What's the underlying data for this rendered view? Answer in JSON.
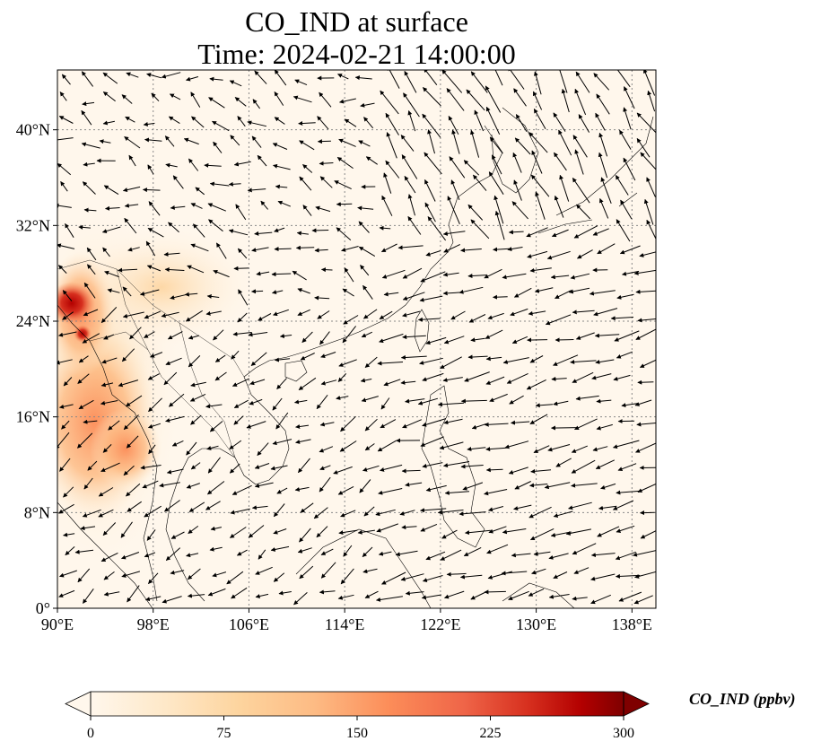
{
  "title": {
    "line1": "CO_IND at surface",
    "line2": "Time: 2024-02-21 14:00:00"
  },
  "map": {
    "variable": "CO_IND",
    "extent": {
      "lon_min": 90,
      "lon_max": 140,
      "lat_min": 0,
      "lat_max": 45
    },
    "lon_ticks": [
      {
        "value": 90,
        "label": "90°E"
      },
      {
        "value": 98,
        "label": "98°E"
      },
      {
        "value": 106,
        "label": "106°E"
      },
      {
        "value": 114,
        "label": "114°E"
      },
      {
        "value": 122,
        "label": "122°E"
      },
      {
        "value": 130,
        "label": "130°E"
      },
      {
        "value": 138,
        "label": "138°E"
      }
    ],
    "lat_ticks": [
      {
        "value": 0,
        "label": "0°"
      },
      {
        "value": 8,
        "label": "8°N"
      },
      {
        "value": 16,
        "label": "16°N"
      },
      {
        "value": 24,
        "label": "24°N"
      },
      {
        "value": 32,
        "label": "32°N"
      },
      {
        "value": 40,
        "label": "40°N"
      }
    ],
    "gridlines": "dotted",
    "high_concentration_regions": [
      {
        "lon": 91,
        "lat": 26,
        "value": 300
      },
      {
        "lon": 92,
        "lat": 25,
        "value": 260
      },
      {
        "lon": 95,
        "lat": 20,
        "value": 120
      },
      {
        "lon": 97,
        "lat": 14,
        "value": 140
      },
      {
        "lon": 100,
        "lat": 24,
        "value": 70
      },
      {
        "lon": 103,
        "lat": 26,
        "value": 50
      }
    ],
    "wind_vectors": "quiver field, predominantly northeasterly over the South China Sea and westerly over northern Pacific"
  },
  "colorbar": {
    "label": "CO_IND (ppbv)",
    "min": 0,
    "max": 300,
    "ticks": [
      "0",
      "75",
      "150",
      "225",
      "300"
    ],
    "colormap": "OrRd",
    "colors": [
      "#fff7ec",
      "#fee8c8",
      "#fdd49e",
      "#fdbb84",
      "#fc8d59",
      "#ef6548",
      "#d7301f",
      "#b30000",
      "#7f0000"
    ],
    "extend": "both"
  }
}
